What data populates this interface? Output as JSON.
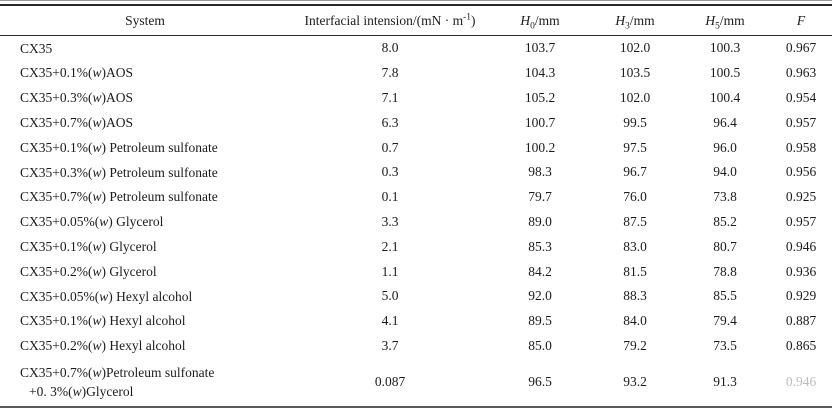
{
  "table": {
    "header": {
      "system": "System",
      "tension_text": "Interfacial intension/(mN · m",
      "tension_sup": "-1",
      "tension_close": ")",
      "h_var": "H",
      "h0_sub": "0",
      "h3_sub": "3",
      "h5_sub": "5",
      "h_unit": "/mm",
      "f": "F"
    },
    "rows": [
      {
        "system": "CX35",
        "tension": "8.0",
        "h0": "103.7",
        "h3": "102.0",
        "h5": "100.3",
        "f": "0.967"
      },
      {
        "system": "CX35+0.1%(w)AOS",
        "tension": "7.8",
        "h0": "104.3",
        "h3": "103.5",
        "h5": "100.5",
        "f": "0.963"
      },
      {
        "system": "CX35+0.3%(w)AOS",
        "tension": "7.1",
        "h0": "105.2",
        "h3": "102.0",
        "h5": "100.4",
        "f": "0.954"
      },
      {
        "system": "CX35+0.7%(w)AOS",
        "tension": "6.3",
        "h0": "100.7",
        "h3": "99.5",
        "h5": "96.4",
        "f": "0.957"
      },
      {
        "system": "CX35+0.1%(w) Petroleum sulfonate",
        "tension": "0.7",
        "h0": "100.2",
        "h3": "97.5",
        "h5": "96.0",
        "f": "0.958"
      },
      {
        "system": "CX35+0.3%(w) Petroleum sulfonate",
        "tension": "0.3",
        "h0": "98.3",
        "h3": "96.7",
        "h5": "94.0",
        "f": "0.956"
      },
      {
        "system": "CX35+0.7%(w) Petroleum sulfonate",
        "tension": "0.1",
        "h0": "79.7",
        "h3": "76.0",
        "h5": "73.8",
        "f": "0.925"
      },
      {
        "system": "CX35+0.05%(w) Glycerol",
        "tension": "3.3",
        "h0": "89.0",
        "h3": "87.5",
        "h5": "85.2",
        "f": "0.957"
      },
      {
        "system": "CX35+0.1%(w) Glycerol",
        "tension": "2.1",
        "h0": "85.3",
        "h3": "83.0",
        "h5": "80.7",
        "f": "0.946"
      },
      {
        "system": "CX35+0.2%(w) Glycerol",
        "tension": "1.1",
        "h0": "84.2",
        "h3": "81.5",
        "h5": "78.8",
        "f": "0.936"
      },
      {
        "system": "CX35+0.05%(w) Hexyl alcohol",
        "tension": "5.0",
        "h0": "92.0",
        "h3": "88.3",
        "h5": "85.5",
        "f": "0.929"
      },
      {
        "system": "CX35+0.1%(w) Hexyl alcohol",
        "tension": "4.1",
        "h0": "89.5",
        "h3": "84.0",
        "h5": "79.4",
        "f": "0.887"
      },
      {
        "system": "CX35+0.2%(w) Hexyl alcohol",
        "tension": "3.7",
        "h0": "85.0",
        "h3": "79.2",
        "h5": "73.5",
        "f": "0.865"
      },
      {
        "system": "CX35+0.7%(w)Petroleum sulfonate\n+0. 3%(w)Glycerol",
        "tension": "0.087",
        "h0": "96.5",
        "h3": "93.2",
        "h5": "91.3",
        "f": "0.946",
        "f_faded": true,
        "tall": true
      }
    ]
  }
}
